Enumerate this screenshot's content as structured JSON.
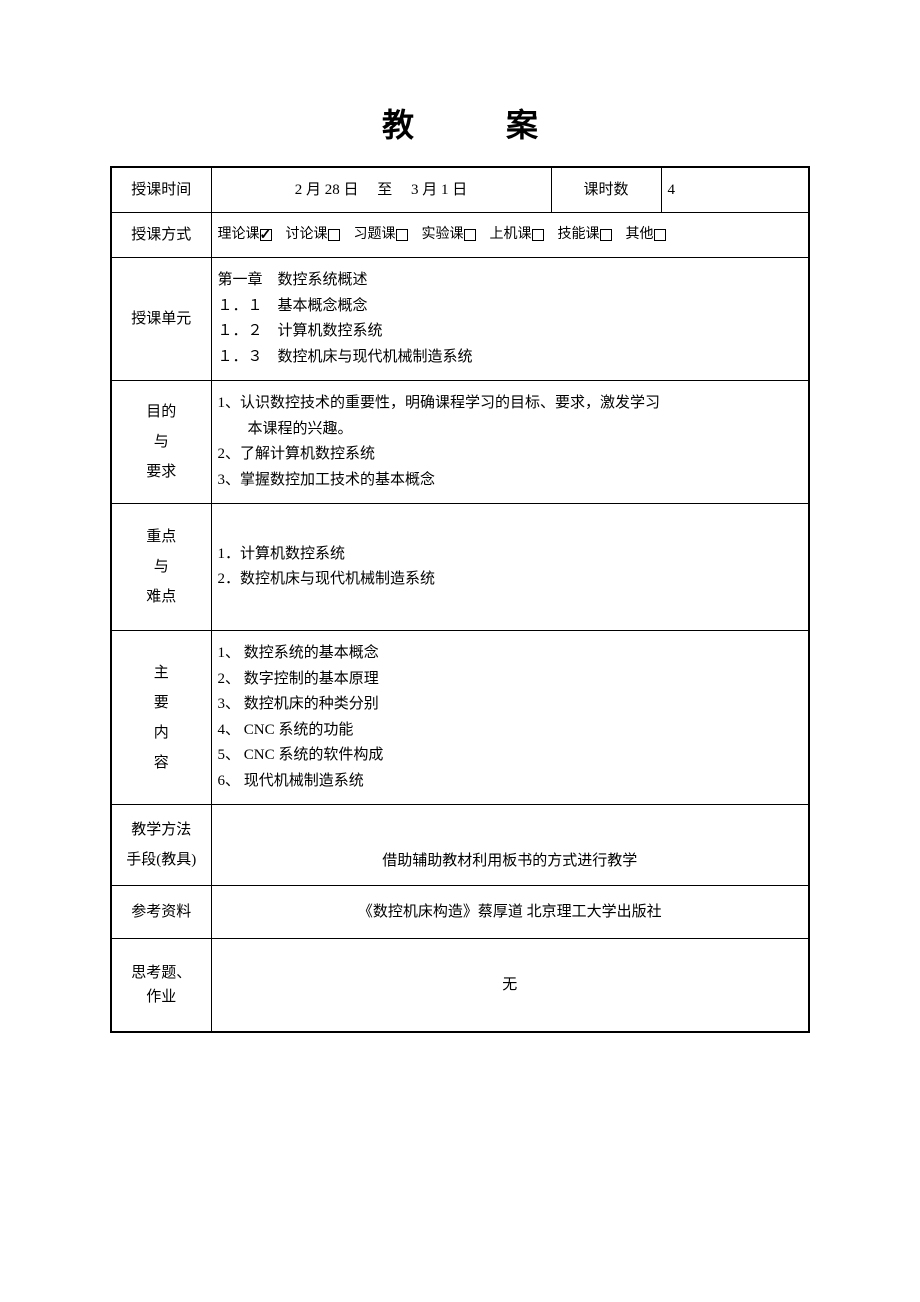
{
  "title": "教　案",
  "rows": {
    "time_label": "授课时间",
    "time_value": "2 月 28 日　 至　 3 月 1 日",
    "hours_label": "课时数",
    "hours_value": "4",
    "method_label": "授课方式",
    "methods": [
      {
        "label": "理论课",
        "checked": true
      },
      {
        "label": "讨论课",
        "checked": false
      },
      {
        "label": "习题课",
        "checked": false
      },
      {
        "label": "实验课",
        "checked": false
      },
      {
        "label": "上机课",
        "checked": false
      },
      {
        "label": "技能课",
        "checked": false
      },
      {
        "label": "其他",
        "checked": false
      }
    ],
    "unit_label": "授课单元",
    "unit_value": "第一章　数控系统概述\n１．１　基本概念概念\n１．２　计算机数控系统\n１．３　数控机床与现代机械制造系统",
    "purpose_label": "目的\n与\n要求",
    "purpose_value": "1、认识数控技术的重要性，明确课程学习的目标、要求，激发学习\n　　本课程的兴趣。\n2、了解计算机数控系统\n3、掌握数控加工技术的基本概念",
    "keypoint_label": "重点\n与\n难点",
    "keypoint_value": "1．计算机数控系统\n2．数控机床与现代机械制造系统",
    "content_label": "主\n要\n内\n容",
    "content_value": "1、 数控系统的基本概念\n2、 数字控制的基本原理\n3、 数控机床的种类分别\n4、 CNC 系统的功能\n5、 CNC 系统的软件构成\n6、 现代机械制造系统",
    "teach_label": "教学方法\n手段(教具)",
    "teach_value": "借助辅助教材利用板书的方式进行教学",
    "ref_label": "参考资料",
    "ref_value": "《数控机床构造》蔡厚道  北京理工大学出版社",
    "hw_label": "思考题、\n作业",
    "hw_value": "无"
  },
  "style": {
    "background_color": "#ffffff",
    "text_color": "#000000",
    "border_color": "#000000",
    "font_family": "SimSun",
    "title_fontsize": 32,
    "body_fontsize": 15
  }
}
